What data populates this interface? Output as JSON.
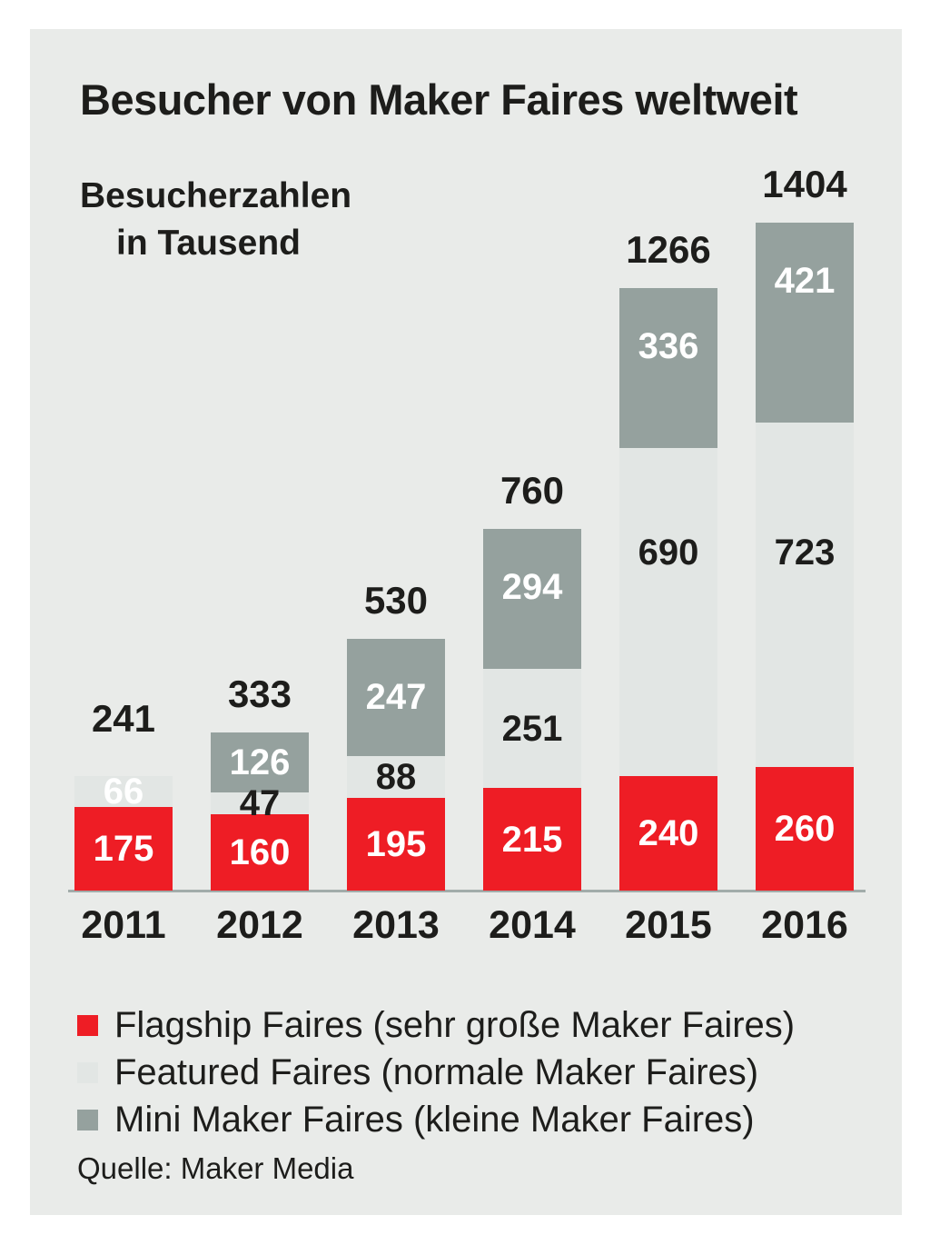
{
  "header": {
    "title": "Besucher von Maker Faires weltweit",
    "subtitle_line1": "Besucherzahlen",
    "subtitle_line2": "in Tausend"
  },
  "footer": {
    "source": "Quelle: Maker Media"
  },
  "colors": {
    "page_background": "#ffffff",
    "card_background": "#e9ebe9",
    "flagship_red": "#ee1d25",
    "featured_light_gray": "#e2e6e4",
    "mini_gray": "#95a19e",
    "text": "#1d1d1b",
    "axis_line": "#a2acaa",
    "label_white": "#ffffff"
  },
  "legend": {
    "items": [
      {
        "label": "Flagship Faires (sehr große Maker Faires)",
        "color": "#ee1d25"
      },
      {
        "label": "Featured Faires (normale Maker Faires)",
        "color": "#e2e6e4"
      },
      {
        "label": "Mini Maker Faires (kleine Maker Faires)",
        "color": "#95a19e"
      }
    ]
  },
  "chart_data": {
    "type": "bar",
    "stacked": true,
    "title": "Besucher von Maker Faires weltweit",
    "unit_note": "Besucherzahlen in Tausend",
    "categories": [
      "2011",
      "2012",
      "2013",
      "2014",
      "2015",
      "2016"
    ],
    "series": [
      {
        "name": "Flagship Faires (sehr große Maker Faires)",
        "color": "#ee1d25",
        "values": [
          175,
          160,
          195,
          215,
          240,
          260
        ],
        "label_color": "#ffffff"
      },
      {
        "name": "Featured Faires (normale Maker Faires)",
        "color": "#e2e6e4",
        "values": [
          66,
          47,
          88,
          251,
          690,
          723
        ],
        "label_colors": [
          "#ffffff",
          "#1d1d1b",
          "#1d1d1b",
          "#1d1d1b",
          "#1d1d1b",
          "#1d1d1b"
        ]
      },
      {
        "name": "Mini Maker Faires (kleine Maker Faires)",
        "color": "#95a19e",
        "values": [
          null,
          126,
          247,
          294,
          336,
          421
        ],
        "label_color": "#ffffff"
      }
    ],
    "totals": [
      241,
      333,
      530,
      760,
      1266,
      1404
    ],
    "ylim": [
      0,
      1404
    ],
    "grid": false,
    "legend_position": "bottom",
    "xlabel": "",
    "ylabel": ""
  }
}
